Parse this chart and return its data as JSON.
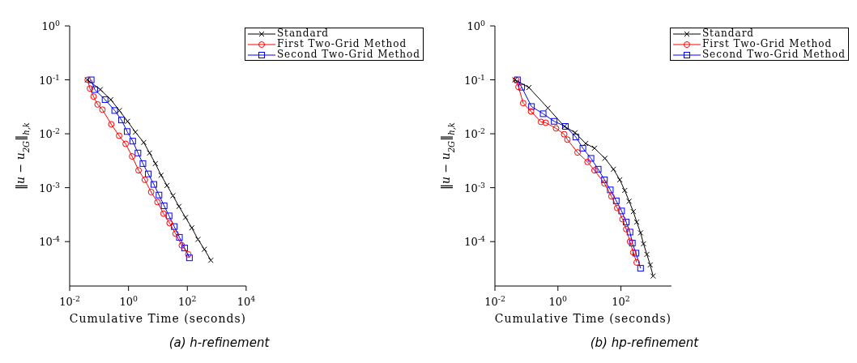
{
  "chart_data": [
    {
      "type": "line",
      "title": "(a) h-refinement",
      "xlabel": "Cumulative Time (seconds)",
      "ylabel": "‖u − u$_{2G}$‖$_{h,k}$",
      "log": "xy",
      "legend": "top right",
      "line_style": "solid",
      "xlim": [
        0.01,
        10000
      ],
      "xticks": [
        {
          "value": 0.01,
          "label": "10$^{-2}$"
        },
        {
          "value": 1,
          "label": "10$^{0}$"
        },
        {
          "value": 100,
          "label": "10$^{2}$"
        },
        {
          "value": 10000,
          "label": "10$^{4}$"
        }
      ],
      "ylim": [
        1.5e-05,
        1
      ],
      "yticks": [
        {
          "value": 0.0001,
          "label": "10$^{-4}$"
        },
        {
          "value": 0.001,
          "label": "10$^{-3}$"
        },
        {
          "value": 0.01,
          "label": "10$^{-2}$"
        },
        {
          "value": 0.1,
          "label": "10$^{-1}$"
        },
        {
          "value": 1,
          "label": "10$^{0}$"
        }
      ],
      "series": [
        {
          "name": "Standard",
          "color": "#000000",
          "marker": "cross",
          "x": [
            0.04,
            0.11,
            0.25,
            0.49,
            0.93,
            1.72,
            3.3,
            5.2,
            8.2,
            12.8,
            20.4,
            32.4,
            52,
            87,
            142,
            230,
            380,
            630
          ],
          "values": [
            0.1,
            0.066,
            0.043,
            0.027,
            0.017,
            0.0107,
            0.0069,
            0.0044,
            0.0028,
            0.0017,
            0.0011,
            0.00071,
            0.00045,
            0.00028,
            0.00018,
            0.00011,
            7.2e-05,
            4.5e-05
          ]
        },
        {
          "name": "First Two-Grid Method",
          "color": "#ff0000",
          "marker": "circle",
          "x": [
            0.041,
            0.049,
            0.065,
            0.089,
            0.13,
            0.26,
            0.48,
            0.8,
            1.33,
            2.2,
            3.6,
            5.9,
            9.7,
            15.5,
            25,
            40,
            65,
            108
          ],
          "values": [
            0.1,
            0.069,
            0.049,
            0.035,
            0.028,
            0.015,
            0.0092,
            0.0065,
            0.0038,
            0.0021,
            0.0014,
            0.00083,
            0.00054,
            0.00033,
            0.00022,
            0.00014,
            8.5e-05,
            5.8e-05
          ]
        },
        {
          "name": "Second Two-Grid Method",
          "color": "#0000ff",
          "marker": "square",
          "x": [
            0.054,
            0.071,
            0.16,
            0.34,
            0.58,
            0.9,
            1.39,
            2.1,
            3.1,
            4.7,
            7.3,
            10.9,
            16.3,
            24,
            36,
            54,
            81,
            118
          ],
          "values": [
            0.1,
            0.066,
            0.043,
            0.027,
            0.018,
            0.011,
            0.0073,
            0.0044,
            0.0028,
            0.0018,
            0.00115,
            0.00073,
            0.00046,
            0.0003,
            0.00019,
            0.00012,
            7.6e-05,
            5e-05
          ]
        }
      ]
    },
    {
      "type": "line",
      "title": "(b) hp-refinement",
      "xlabel": "Cumulative Time (seconds)",
      "ylabel": "‖u − u$_{2G}$‖$_{h,k}$",
      "log": "xy",
      "legend": "top right",
      "line_style": "solid",
      "xlim": [
        0.01,
        4000
      ],
      "xticks": [
        {
          "value": 0.01,
          "label": "10$^{-2}$"
        },
        {
          "value": 1,
          "label": "10$^{0}$"
        },
        {
          "value": 100,
          "label": "10$^{2}$"
        }
      ],
      "ylim": [
        1.5e-05,
        1
      ],
      "yticks": [
        {
          "value": 0.0001,
          "label": "10$^{-4}$"
        },
        {
          "value": 0.001,
          "label": "10$^{-3}$"
        },
        {
          "value": 0.01,
          "label": "10$^{-2}$"
        },
        {
          "value": 0.1,
          "label": "10$^{-1}$"
        },
        {
          "value": 1,
          "label": "10$^{0}$"
        }
      ],
      "series": [
        {
          "name": "Standard",
          "color": "#000000",
          "marker": "cross",
          "x": [
            0.043,
            0.12,
            0.48,
            1.6,
            3.5,
            7.6,
            14.5,
            31,
            58,
            92,
            132,
            182,
            247,
            318,
            420,
            520,
            665,
            850,
            1050
          ],
          "values": [
            0.1,
            0.072,
            0.03,
            0.0137,
            0.0105,
            0.0066,
            0.0054,
            0.0035,
            0.0022,
            0.0014,
            0.00089,
            0.00056,
            0.00036,
            0.00023,
            0.000145,
            9.1e-05,
            5.8e-05,
            3.7e-05,
            2.3e-05
          ]
        },
        {
          "name": "First Two-Grid Method",
          "color": "#ff0000",
          "marker": "circle",
          "x": [
            0.047,
            0.056,
            0.079,
            0.14,
            0.29,
            0.41,
            0.87,
            1.58,
            2.0,
            4.2,
            8.7,
            14.5,
            30,
            50,
            76,
            112,
            147,
            194,
            247,
            316
          ],
          "values": [
            0.1,
            0.074,
            0.037,
            0.026,
            0.0166,
            0.016,
            0.0126,
            0.0098,
            0.0078,
            0.0045,
            0.003,
            0.0021,
            0.0012,
            0.00069,
            0.00042,
            0.00026,
            0.00017,
            0.0001,
            6.3e-05,
            4.1e-05
          ]
        },
        {
          "name": "Second Two-Grid Method",
          "color": "#0000ff",
          "marker": "square",
          "x": [
            0.052,
            0.071,
            0.145,
            0.34,
            0.76,
            1.73,
            3.7,
            6.2,
            11.2,
            19,
            30,
            46,
            71,
            105,
            147,
            194,
            230,
            300,
            420
          ],
          "values": [
            0.1,
            0.073,
            0.032,
            0.0235,
            0.017,
            0.0137,
            0.0087,
            0.0054,
            0.0035,
            0.0022,
            0.0014,
            0.00091,
            0.00057,
            0.00037,
            0.00023,
            0.00015,
            9.4e-05,
            6.1e-05,
            3.2e-05
          ]
        }
      ]
    }
  ]
}
